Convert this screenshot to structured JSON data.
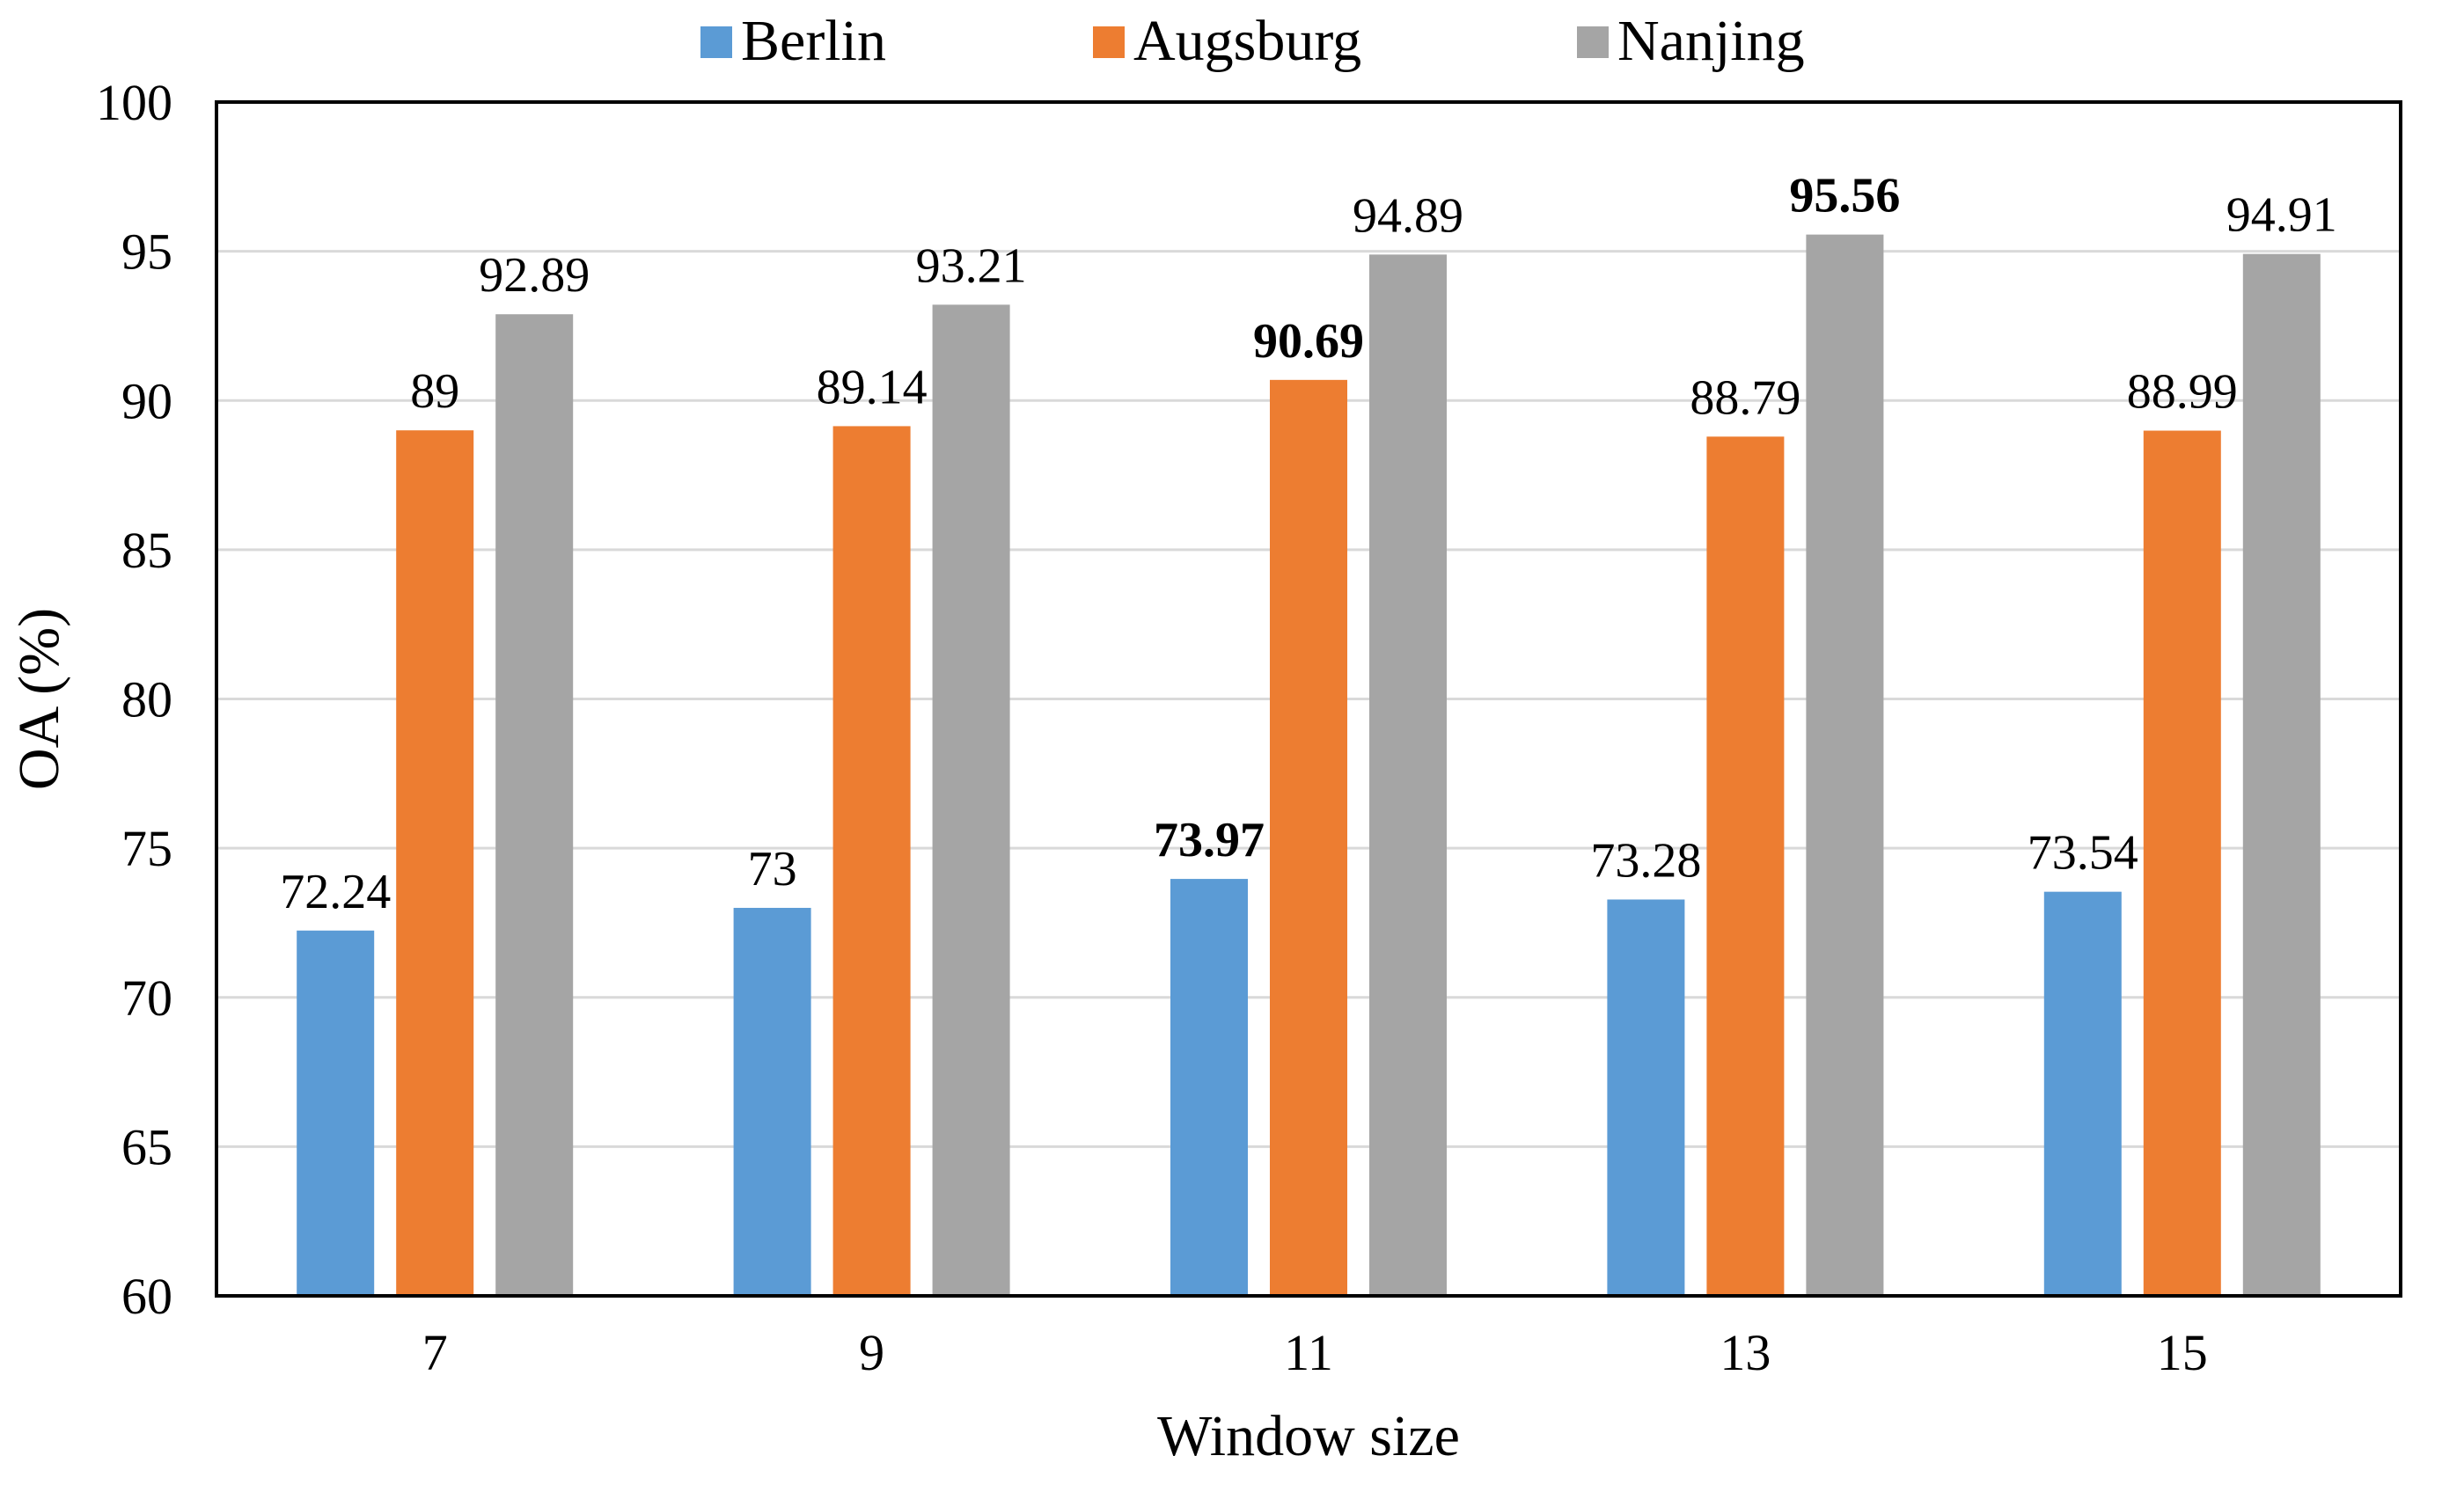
{
  "chart_data": {
    "type": "bar",
    "title": "",
    "xlabel": "Window size",
    "ylabel": "OA (%)",
    "ylim": [
      60,
      100
    ],
    "yticks": [
      60,
      65,
      70,
      75,
      80,
      85,
      90,
      95,
      100
    ],
    "categories": [
      "7",
      "9",
      "11",
      "13",
      "15"
    ],
    "grid": true,
    "legend_position": "top-center",
    "series": [
      {
        "name": "Berlin",
        "color": "#5b9bd5",
        "values": [
          72.24,
          73,
          73.97,
          73.28,
          73.54
        ],
        "labels": [
          "72.24",
          "73",
          "73.97",
          "73.28",
          "73.54"
        ],
        "bold": [
          false,
          false,
          true,
          false,
          false
        ]
      },
      {
        "name": "Augsburg",
        "color": "#ed7d31",
        "values": [
          89,
          89.14,
          90.69,
          88.79,
          88.99
        ],
        "labels": [
          "89",
          "89.14",
          "90.69",
          "88.79",
          "88.99"
        ],
        "bold": [
          false,
          false,
          true,
          false,
          false
        ]
      },
      {
        "name": "Nanjing",
        "color": "#a5a5a5",
        "values": [
          92.89,
          93.21,
          94.89,
          95.56,
          94.91
        ],
        "labels": [
          "92.89",
          "93.21",
          "94.89",
          "95.56",
          "94.91"
        ],
        "bold": [
          false,
          false,
          false,
          true,
          false
        ]
      }
    ]
  }
}
